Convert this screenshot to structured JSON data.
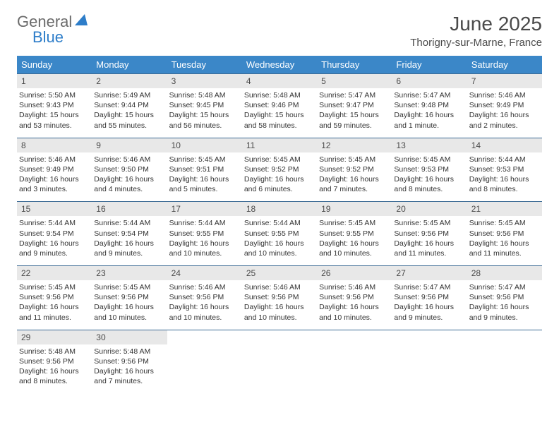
{
  "logo": {
    "text_general": "General",
    "text_blue": "Blue",
    "icon_fill": "#2d7dc9"
  },
  "title": "June 2025",
  "location": "Thorigny-sur-Marne, France",
  "colors": {
    "header_bg": "#3b87c8",
    "header_text": "#ffffff",
    "row_border": "#3b6a94",
    "daynum_bg": "#e8e8e8",
    "body_text": "#333333"
  },
  "day_names": [
    "Sunday",
    "Monday",
    "Tuesday",
    "Wednesday",
    "Thursday",
    "Friday",
    "Saturday"
  ],
  "weeks": [
    [
      {
        "num": "1",
        "sunrise": "5:50 AM",
        "sunset": "9:43 PM",
        "daylight": "15 hours and 53 minutes."
      },
      {
        "num": "2",
        "sunrise": "5:49 AM",
        "sunset": "9:44 PM",
        "daylight": "15 hours and 55 minutes."
      },
      {
        "num": "3",
        "sunrise": "5:48 AM",
        "sunset": "9:45 PM",
        "daylight": "15 hours and 56 minutes."
      },
      {
        "num": "4",
        "sunrise": "5:48 AM",
        "sunset": "9:46 PM",
        "daylight": "15 hours and 58 minutes."
      },
      {
        "num": "5",
        "sunrise": "5:47 AM",
        "sunset": "9:47 PM",
        "daylight": "15 hours and 59 minutes."
      },
      {
        "num": "6",
        "sunrise": "5:47 AM",
        "sunset": "9:48 PM",
        "daylight": "16 hours and 1 minute."
      },
      {
        "num": "7",
        "sunrise": "5:46 AM",
        "sunset": "9:49 PM",
        "daylight": "16 hours and 2 minutes."
      }
    ],
    [
      {
        "num": "8",
        "sunrise": "5:46 AM",
        "sunset": "9:49 PM",
        "daylight": "16 hours and 3 minutes."
      },
      {
        "num": "9",
        "sunrise": "5:46 AM",
        "sunset": "9:50 PM",
        "daylight": "16 hours and 4 minutes."
      },
      {
        "num": "10",
        "sunrise": "5:45 AM",
        "sunset": "9:51 PM",
        "daylight": "16 hours and 5 minutes."
      },
      {
        "num": "11",
        "sunrise": "5:45 AM",
        "sunset": "9:52 PM",
        "daylight": "16 hours and 6 minutes."
      },
      {
        "num": "12",
        "sunrise": "5:45 AM",
        "sunset": "9:52 PM",
        "daylight": "16 hours and 7 minutes."
      },
      {
        "num": "13",
        "sunrise": "5:45 AM",
        "sunset": "9:53 PM",
        "daylight": "16 hours and 8 minutes."
      },
      {
        "num": "14",
        "sunrise": "5:44 AM",
        "sunset": "9:53 PM",
        "daylight": "16 hours and 8 minutes."
      }
    ],
    [
      {
        "num": "15",
        "sunrise": "5:44 AM",
        "sunset": "9:54 PM",
        "daylight": "16 hours and 9 minutes."
      },
      {
        "num": "16",
        "sunrise": "5:44 AM",
        "sunset": "9:54 PM",
        "daylight": "16 hours and 9 minutes."
      },
      {
        "num": "17",
        "sunrise": "5:44 AM",
        "sunset": "9:55 PM",
        "daylight": "16 hours and 10 minutes."
      },
      {
        "num": "18",
        "sunrise": "5:44 AM",
        "sunset": "9:55 PM",
        "daylight": "16 hours and 10 minutes."
      },
      {
        "num": "19",
        "sunrise": "5:45 AM",
        "sunset": "9:55 PM",
        "daylight": "16 hours and 10 minutes."
      },
      {
        "num": "20",
        "sunrise": "5:45 AM",
        "sunset": "9:56 PM",
        "daylight": "16 hours and 11 minutes."
      },
      {
        "num": "21",
        "sunrise": "5:45 AM",
        "sunset": "9:56 PM",
        "daylight": "16 hours and 11 minutes."
      }
    ],
    [
      {
        "num": "22",
        "sunrise": "5:45 AM",
        "sunset": "9:56 PM",
        "daylight": "16 hours and 11 minutes."
      },
      {
        "num": "23",
        "sunrise": "5:45 AM",
        "sunset": "9:56 PM",
        "daylight": "16 hours and 10 minutes."
      },
      {
        "num": "24",
        "sunrise": "5:46 AM",
        "sunset": "9:56 PM",
        "daylight": "16 hours and 10 minutes."
      },
      {
        "num": "25",
        "sunrise": "5:46 AM",
        "sunset": "9:56 PM",
        "daylight": "16 hours and 10 minutes."
      },
      {
        "num": "26",
        "sunrise": "5:46 AM",
        "sunset": "9:56 PM",
        "daylight": "16 hours and 10 minutes."
      },
      {
        "num": "27",
        "sunrise": "5:47 AM",
        "sunset": "9:56 PM",
        "daylight": "16 hours and 9 minutes."
      },
      {
        "num": "28",
        "sunrise": "5:47 AM",
        "sunset": "9:56 PM",
        "daylight": "16 hours and 9 minutes."
      }
    ],
    [
      {
        "num": "29",
        "sunrise": "5:48 AM",
        "sunset": "9:56 PM",
        "daylight": "16 hours and 8 minutes."
      },
      {
        "num": "30",
        "sunrise": "5:48 AM",
        "sunset": "9:56 PM",
        "daylight": "16 hours and 7 minutes."
      },
      null,
      null,
      null,
      null,
      null
    ]
  ],
  "labels": {
    "sunrise": "Sunrise:",
    "sunset": "Sunset:",
    "daylight": "Daylight:"
  }
}
